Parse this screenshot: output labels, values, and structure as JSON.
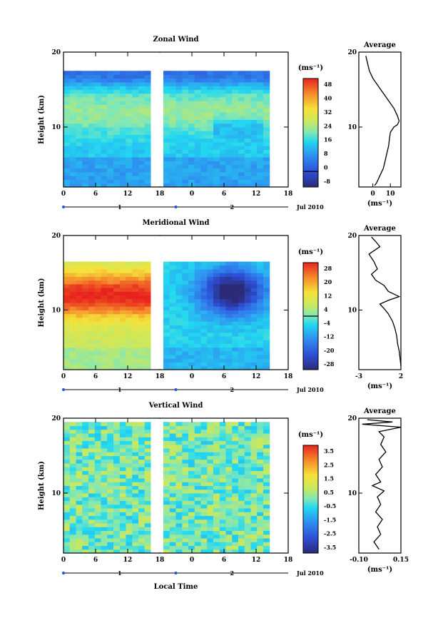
{
  "accent": "#000000",
  "footer_xlabel": "Local Time",
  "chart_data": [
    {
      "type": "heatmap",
      "title": "Zonal Wind",
      "ylabel": "Height (km)",
      "xlim": [
        0,
        36
      ],
      "ylim": [
        2,
        20
      ],
      "x_ticks": [
        "0",
        "6",
        "12",
        "18",
        "0",
        "6",
        "12",
        "18"
      ],
      "y_ticks": [
        "20",
        "10"
      ],
      "date_label": "Jul 2010",
      "day_labels": [
        "1",
        "2"
      ],
      "colorbar": {
        "unit": "(ms⁻¹)",
        "min": -8,
        "max": 48,
        "labels": [
          "48",
          "40",
          "32",
          "24",
          "16",
          "8",
          "0",
          "-8"
        ],
        "contour_at": 0
      },
      "profile": {
        "title": "Average",
        "xlim": [
          -8,
          16
        ],
        "ylim": [
          2,
          20
        ],
        "x_ticks": [
          "0",
          "10"
        ],
        "y_ticks": [
          "20",
          "10"
        ],
        "xunit": "(ms⁻¹)",
        "points": [
          [
            -4,
            19.5
          ],
          [
            -3,
            18.5
          ],
          [
            -2,
            17.5
          ],
          [
            0,
            16.5
          ],
          [
            3,
            15.5
          ],
          [
            6,
            14.5
          ],
          [
            9,
            13.5
          ],
          [
            12,
            12.5
          ],
          [
            14,
            11.5
          ],
          [
            15,
            10.8
          ],
          [
            14,
            10.3
          ],
          [
            12,
            10
          ],
          [
            10,
            9.3
          ],
          [
            9.5,
            8.5
          ],
          [
            9,
            7.5
          ],
          [
            8,
            6.5
          ],
          [
            7,
            5.5
          ],
          [
            6,
            4.5
          ],
          [
            4,
            3.5
          ],
          [
            2,
            2.5
          ],
          [
            1,
            2.2
          ]
        ]
      }
    },
    {
      "type": "heatmap",
      "title": "Meridional Wind",
      "ylabel": "Height (km)",
      "xlim": [
        0,
        36
      ],
      "ylim": [
        2,
        20
      ],
      "x_ticks": [
        "0",
        "6",
        "12",
        "18",
        "0",
        "6",
        "12",
        "18"
      ],
      "y_ticks": [
        "20",
        "10"
      ],
      "date_label": "Jul 2010",
      "day_labels": [
        "1",
        "2"
      ],
      "colorbar": {
        "unit": "(ms⁻¹)",
        "min": -28,
        "max": 28,
        "labels": [
          "28",
          "20",
          "12",
          "4",
          "-4",
          "-12",
          "-20",
          "-28"
        ],
        "contour_at": 0
      },
      "profile": {
        "title": "Average",
        "xlim": [
          -3,
          2
        ],
        "ylim": [
          2,
          20
        ],
        "x_ticks": [
          "-3",
          "2"
        ],
        "y_ticks": [
          "20",
          "10"
        ],
        "xunit": "(ms⁻¹)",
        "points": [
          [
            -1.5,
            19.8
          ],
          [
            -1,
            19.2
          ],
          [
            -0.5,
            18.5
          ],
          [
            -1.8,
            17.5
          ],
          [
            -1.2,
            16.5
          ],
          [
            -0.8,
            15.5
          ],
          [
            -1.5,
            14.8
          ],
          [
            -1,
            14
          ],
          [
            0,
            13.3
          ],
          [
            0.5,
            12.5
          ],
          [
            1.8,
            11.8
          ],
          [
            0.5,
            11.3
          ],
          [
            -0.5,
            10.8
          ],
          [
            0,
            10.2
          ],
          [
            0.5,
            9.5
          ],
          [
            1,
            8.5
          ],
          [
            1.3,
            7.5
          ],
          [
            1.5,
            6.5
          ],
          [
            1.6,
            5.5
          ],
          [
            1.8,
            4.5
          ],
          [
            1.9,
            3.5
          ],
          [
            2,
            2.5
          ]
        ]
      }
    },
    {
      "type": "heatmap",
      "title": "Vertical Wind",
      "ylabel": "Height (km)",
      "xlabel": "Local Time",
      "xlim": [
        0,
        36
      ],
      "ylim": [
        2,
        20
      ],
      "x_ticks": [
        "0",
        "6",
        "12",
        "18",
        "0",
        "6",
        "12",
        "18"
      ],
      "y_ticks": [
        "20",
        "10"
      ],
      "date_label": "Jul 2010",
      "day_labels": [
        "1",
        "2"
      ],
      "colorbar": {
        "unit": "(ms⁻¹)",
        "min": -3.5,
        "max": 3.5,
        "labels": [
          "3.5",
          "2.5",
          "1.5",
          "0.5",
          "-0.5",
          "-1.5",
          "-2.5",
          "-3.5"
        ],
        "contour_at": null
      },
      "profile": {
        "title": "Average",
        "xlim": [
          -0.1,
          0.15
        ],
        "ylim": [
          2,
          20
        ],
        "x_ticks": [
          "-0.10",
          "0.15"
        ],
        "y_ticks": [
          "20",
          "10"
        ],
        "xunit": "(ms⁻¹)",
        "points": [
          [
            -0.05,
            19.8
          ],
          [
            0.1,
            19.5
          ],
          [
            -0.08,
            19.2
          ],
          [
            0.15,
            18.8
          ],
          [
            0.02,
            18.2
          ],
          [
            0.05,
            17.5
          ],
          [
            0.03,
            16.5
          ],
          [
            0.06,
            15.5
          ],
          [
            0.02,
            14.5
          ],
          [
            0.04,
            13.5
          ],
          [
            0.0,
            12.5
          ],
          [
            0.03,
            11.5
          ],
          [
            -0.02,
            11
          ],
          [
            0.05,
            10.3
          ],
          [
            0.01,
            9.5
          ],
          [
            0.03,
            8.5
          ],
          [
            0.0,
            7.5
          ],
          [
            0.04,
            6.5
          ],
          [
            0.01,
            5.5
          ],
          [
            0.03,
            4.5
          ],
          [
            -0.01,
            3.5
          ],
          [
            0.02,
            2.5
          ]
        ]
      }
    }
  ]
}
